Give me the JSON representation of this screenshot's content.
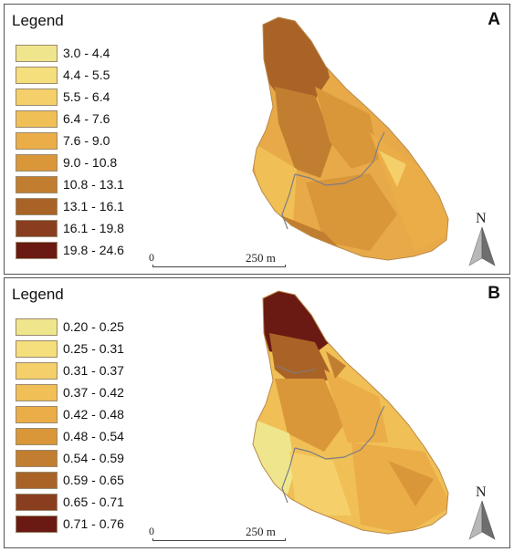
{
  "panels": [
    {
      "id": "A",
      "legend_title": "Legend",
      "letter": "A",
      "scale_zero": "0",
      "scale_label": "250 m",
      "north_label": "N",
      "classes": [
        {
          "label": "3.0 - 4.4",
          "color": "#efe58c"
        },
        {
          "label": "4.4 - 5.5",
          "color": "#f5de7c"
        },
        {
          "label": "5.5 - 6.4",
          "color": "#f4cf6a"
        },
        {
          "label": "6.4 - 7.6",
          "color": "#f0bf55"
        },
        {
          "label": "7.6 - 9.0",
          "color": "#eaad47"
        },
        {
          "label": "9.0 - 10.8",
          "color": "#d9973a"
        },
        {
          "label": "10.8 - 13.1",
          "color": "#c27e30"
        },
        {
          "label": "13.1 - 16.1",
          "color": "#a96327"
        },
        {
          "label": "16.1 - 19.8",
          "color": "#893f1f"
        },
        {
          "label": "19.8 - 24.6",
          "color": "#6a1a12"
        }
      ]
    },
    {
      "id": "B",
      "legend_title": "Legend",
      "letter": "B",
      "scale_zero": "0",
      "scale_label": "250 m",
      "north_label": "N",
      "classes": [
        {
          "label": "0.20 - 0.25",
          "color": "#efe58c"
        },
        {
          "label": "0.25 - 0.31",
          "color": "#f5de7c"
        },
        {
          "label": "0.31 - 0.37",
          "color": "#f4cf6a"
        },
        {
          "label": "0.37 - 0.42",
          "color": "#f0bf55"
        },
        {
          "label": "0.42 - 0.48",
          "color": "#eaad47"
        },
        {
          "label": "0.48 - 0.54",
          "color": "#d9973a"
        },
        {
          "label": "0.54 - 0.59",
          "color": "#c27e30"
        },
        {
          "label": "0.59 - 0.65",
          "color": "#a96327"
        },
        {
          "label": "0.65 - 0.71",
          "color": "#893f1f"
        },
        {
          "label": "0.71 - 0.76",
          "color": "#6a1a12"
        }
      ]
    }
  ]
}
